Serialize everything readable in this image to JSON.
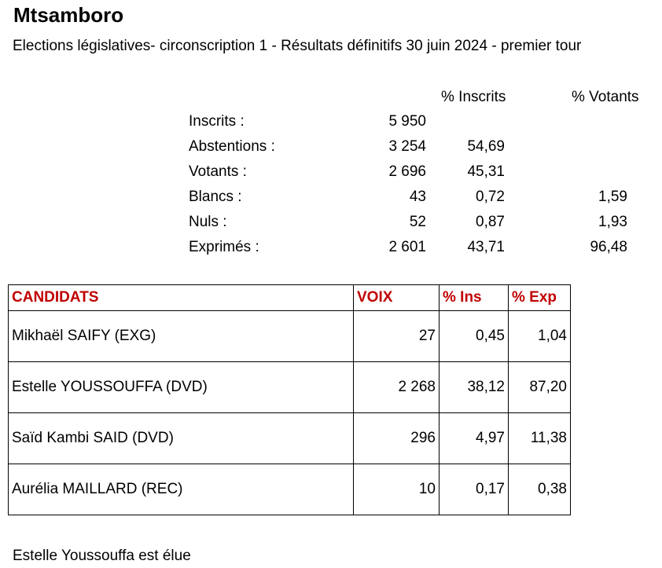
{
  "title": "Mtsamboro",
  "subtitle": "Elections législatives- circonscription 1 - Résultats définitifs 30 juin 2024 - premier tour",
  "stats_headers": {
    "pct_inscrits": "% Inscrits",
    "pct_votants": "% Votants"
  },
  "stats": [
    {
      "label": "Inscrits :",
      "value": "5 950",
      "pct_inscrits": "",
      "pct_votants": ""
    },
    {
      "label": "Abstentions :",
      "value": "3 254",
      "pct_inscrits": "54,69",
      "pct_votants": ""
    },
    {
      "label": "Votants :",
      "value": "2 696",
      "pct_inscrits": "45,31",
      "pct_votants": ""
    },
    {
      "label": "Blancs :",
      "value": "43",
      "pct_inscrits": "0,72",
      "pct_votants": "1,59"
    },
    {
      "label": "Nuls :",
      "value": "52",
      "pct_inscrits": "0,87",
      "pct_votants": "1,93"
    },
    {
      "label": "Exprimés :",
      "value": "2 601",
      "pct_inscrits": "43,71",
      "pct_votants": "96,48"
    }
  ],
  "table": {
    "headers": {
      "candidats": "CANDIDATS",
      "voix": "VOIX",
      "pct_ins": "% Ins",
      "pct_exp": "% Exp"
    },
    "header_color": "#c00000",
    "rows": [
      {
        "candidat": "Mikhaël SAIFY  (EXG)",
        "voix": "27",
        "pct_ins": "0,45",
        "pct_exp": "1,04"
      },
      {
        "candidat": "Estelle YOUSSOUFFA (DVD)",
        "voix": "2 268",
        "pct_ins": "38,12",
        "pct_exp": "87,20"
      },
      {
        "candidat": "Saïd Kambi SAID  (DVD)",
        "voix": "296",
        "pct_ins": "4,97",
        "pct_exp": "11,38"
      },
      {
        "candidat": "Aurélia MAILLARD (REC)",
        "voix": "10",
        "pct_ins": "0,17",
        "pct_exp": "0,38"
      }
    ]
  },
  "footer": "Estelle Youssouffa est élue"
}
